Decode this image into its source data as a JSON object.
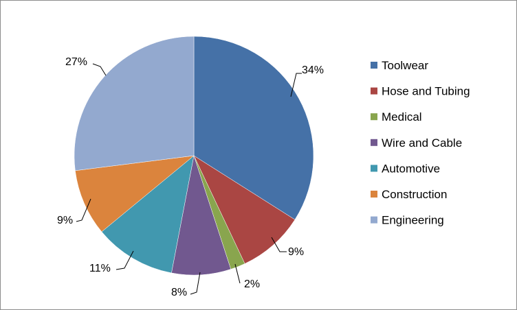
{
  "chart_data": {
    "type": "pie",
    "categories": [
      "Toolwear",
      "Hose and Tubing",
      "Medical",
      "Wire and Cable",
      "Automotive",
      "Construction",
      "Engineering"
    ],
    "values": [
      34,
      9,
      2,
      8,
      11,
      9,
      27
    ],
    "labels": [
      "34%",
      "9%",
      "2%",
      "8%",
      "11%",
      "9%",
      "27%"
    ],
    "colors": [
      "#4571a7",
      "#aa4643",
      "#89a54e",
      "#71588f",
      "#4198af",
      "#db843d",
      "#93a9cf"
    ],
    "legend": "right",
    "start_angle_deg": 0,
    "direction": "clockwise"
  }
}
